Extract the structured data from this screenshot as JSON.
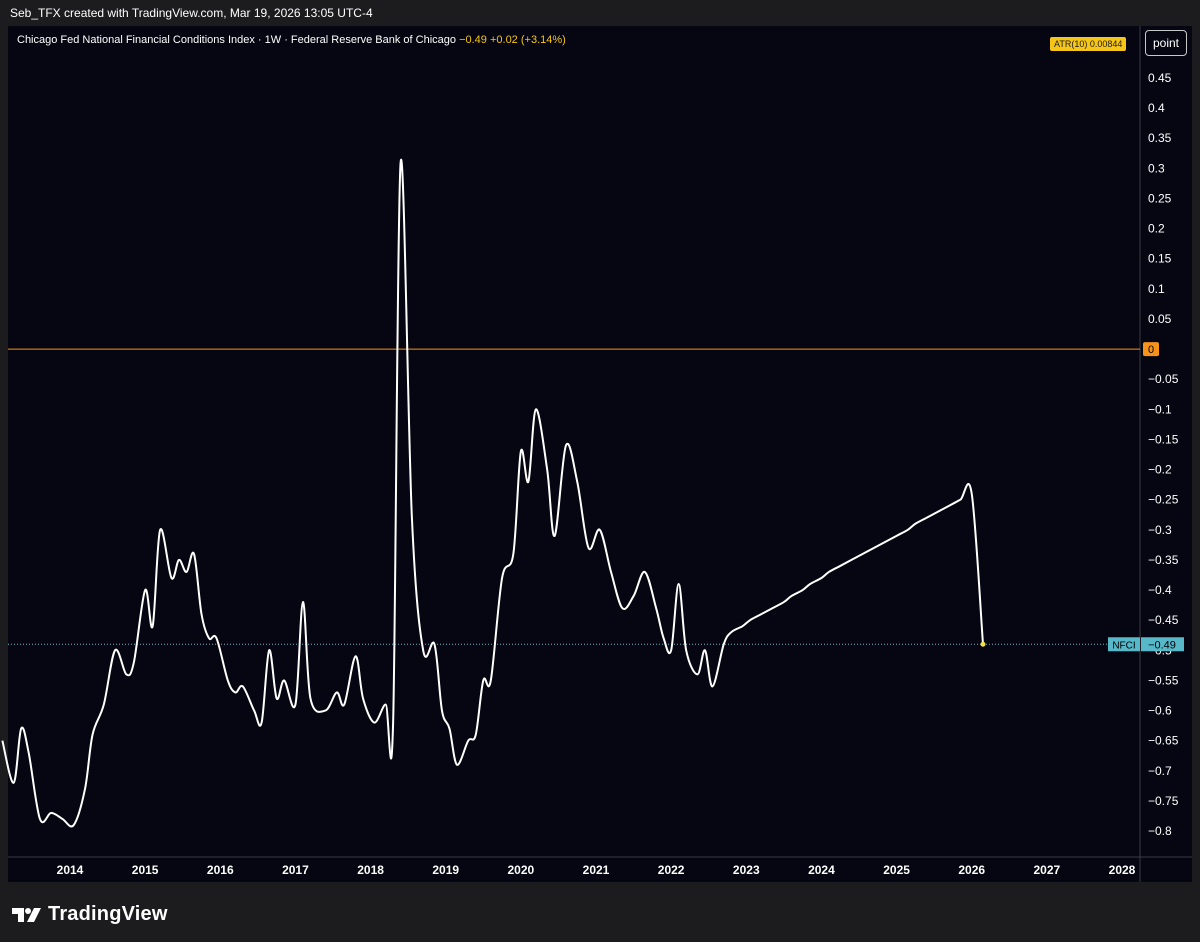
{
  "header": {
    "author_line": "Seb_TFX created with TradingView.com, Mar 19, 2026 13:05 UTC-4"
  },
  "legend": {
    "title": "Chicago Fed National Financial Conditions Index · 1W · Federal Reserve Bank of Chicago",
    "last": "−0.49",
    "change": "+0.02 (+3.14%)"
  },
  "atr_badge": "ATR(10)  0.00844",
  "scale_button": "point",
  "zero_label": "0",
  "series_label": {
    "name": "NFCI",
    "value": "−0.49"
  },
  "brand": "TradingView",
  "colors": {
    "line": "#ffffff",
    "zero_line": "#f7931a",
    "badge": "#56b8c8",
    "last_dot": "#f5e04a",
    "background": "#060612"
  },
  "chart_data": {
    "type": "line",
    "series": [
      {
        "name": "NFCI",
        "x": [
          2013.1,
          2013.25,
          2013.35,
          2013.45,
          2013.6,
          2013.75,
          2013.9,
          2014.05,
          2014.2,
          2014.3,
          2014.45,
          2014.6,
          2014.75,
          2014.85,
          2015.0,
          2015.1,
          2015.2,
          2015.35,
          2015.45,
          2015.55,
          2015.65,
          2015.75,
          2015.85,
          2015.95,
          2016.1,
          2016.2,
          2016.3,
          2016.45,
          2016.55,
          2016.65,
          2016.75,
          2016.85,
          2017.0,
          2017.1,
          2017.2,
          2017.4,
          2017.55,
          2017.65,
          2017.8,
          2017.9,
          2018.05,
          2018.2,
          2018.3,
          2018.4,
          2018.55,
          2018.7,
          2018.85,
          2018.95,
          2019.05,
          2019.15,
          2019.3,
          2019.4,
          2019.5,
          2019.6,
          2019.75,
          2019.9,
          2020.0,
          2020.1,
          2020.2,
          2020.35,
          2020.45,
          2020.6,
          2020.75,
          2020.9,
          2021.05,
          2021.2,
          2021.35,
          2021.5,
          2021.65,
          2021.8,
          2021.9,
          2022.0,
          2022.1,
          2022.2,
          2022.35,
          2022.45,
          2022.55,
          2022.7,
          2022.8,
          2022.95,
          2023.05,
          2023.2,
          2023.35,
          2023.5,
          2023.6,
          2023.75,
          2023.85,
          2024.0,
          2024.1,
          2024.25,
          2024.4,
          2024.55,
          2024.7,
          2024.85,
          2025.0,
          2025.15,
          2025.25,
          2025.4,
          2025.55,
          2025.7,
          2025.85,
          2026.0,
          2026.15
        ],
        "y": [
          -0.65,
          -0.72,
          -0.63,
          -0.67,
          -0.78,
          -0.77,
          -0.78,
          -0.79,
          -0.73,
          -0.64,
          -0.59,
          -0.5,
          -0.54,
          -0.52,
          -0.4,
          -0.46,
          -0.3,
          -0.38,
          -0.35,
          -0.37,
          -0.34,
          -0.44,
          -0.48,
          -0.48,
          -0.55,
          -0.57,
          -0.56,
          -0.6,
          -0.62,
          -0.5,
          -0.58,
          -0.55,
          -0.59,
          -0.42,
          -0.58,
          -0.6,
          -0.57,
          -0.59,
          -0.51,
          -0.58,
          -0.62,
          -0.59,
          -0.62,
          0.31,
          -0.28,
          -0.5,
          -0.49,
          -0.6,
          -0.63,
          -0.69,
          -0.65,
          -0.64,
          -0.55,
          -0.55,
          -0.38,
          -0.34,
          -0.17,
          -0.22,
          -0.1,
          -0.2,
          -0.31,
          -0.16,
          -0.22,
          -0.33,
          -0.3,
          -0.37,
          -0.43,
          -0.41,
          -0.37,
          -0.43,
          -0.48,
          -0.5,
          -0.39,
          -0.5,
          -0.54,
          -0.5,
          -0.56,
          -0.49,
          -0.47,
          -0.46,
          -0.45,
          -0.44,
          -0.43,
          -0.42,
          -0.41,
          -0.4,
          -0.39,
          -0.38,
          -0.37,
          -0.36,
          -0.35,
          -0.34,
          -0.33,
          -0.32,
          -0.31,
          -0.3,
          -0.29,
          -0.28,
          -0.27,
          -0.26,
          -0.25,
          -0.24,
          -0.49
        ]
      }
    ],
    "xlim": [
      2013.15,
      2028.2
    ],
    "ylim": [
      -0.85,
      0.5
    ],
    "x_ticks": [
      "2014",
      "2015",
      "2016",
      "2017",
      "2018",
      "2019",
      "2020",
      "2021",
      "2022",
      "2023",
      "2024",
      "2025",
      "2026",
      "2027",
      "2028"
    ],
    "y_ticks": [
      "0.45",
      "0.4",
      "0.35",
      "0.3",
      "0.25",
      "0.2",
      "0.15",
      "0.1",
      "0.05",
      "−0.05",
      "−0.1",
      "−0.15",
      "−0.2",
      "−0.25",
      "−0.3",
      "−0.35",
      "−0.4",
      "−0.45",
      "−0.5",
      "−0.55",
      "−0.6",
      "−0.65",
      "−0.7",
      "−0.75",
      "−0.8"
    ],
    "reference_line": 0,
    "last_value": -0.49,
    "grid": false
  }
}
